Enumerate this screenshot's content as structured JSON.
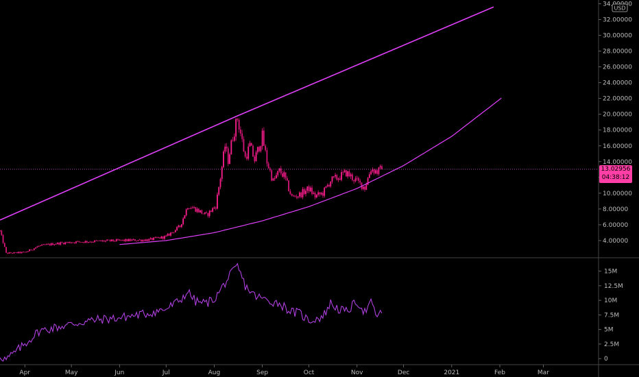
{
  "chart_data": [
    {
      "type": "candlestick",
      "currency": "USD",
      "x_ticks": [
        "Apr",
        "May",
        "Jun",
        "Jul",
        "Aug",
        "Sep",
        "Oct",
        "Nov",
        "Dec",
        "2021",
        "Feb",
        "Mar"
      ],
      "y_ticks": [
        "4.00000",
        "6.00000",
        "8.00000",
        "10.00000",
        "12.00000",
        "14.00000",
        "16.00000",
        "18.00000",
        "20.00000",
        "22.00000",
        "24.00000",
        "26.00000",
        "28.00000",
        "30.00000",
        "32.00000",
        "34.00000"
      ],
      "ylim": [
        2.0,
        34.3
      ],
      "last_price": {
        "value": 13.02956,
        "label": "13.02956",
        "countdown": "04:38:12"
      },
      "colors": {
        "up": "#ff1f8e",
        "down": "#ff1f8e",
        "trendline": "#e040fb",
        "price_line": "#c050c0",
        "tag_bg": "#ff3fa5"
      },
      "price_path": [
        [
          "2020-03-16",
          5.2
        ],
        [
          "2020-03-20",
          2.4
        ],
        [
          "2020-04-01",
          2.5
        ],
        [
          "2020-04-10",
          3.3
        ],
        [
          "2020-04-20",
          3.6
        ],
        [
          "2020-05-01",
          3.8
        ],
        [
          "2020-05-15",
          3.9
        ],
        [
          "2020-06-01",
          4.0
        ],
        [
          "2020-06-20",
          4.1
        ],
        [
          "2020-07-01",
          4.5
        ],
        [
          "2020-07-10",
          5.8
        ],
        [
          "2020-07-15",
          8.4
        ],
        [
          "2020-07-20",
          8.0
        ],
        [
          "2020-07-27",
          7.2
        ],
        [
          "2020-08-02",
          8.4
        ],
        [
          "2020-08-05",
          12.0
        ],
        [
          "2020-08-08",
          16.0
        ],
        [
          "2020-08-10",
          14.2
        ],
        [
          "2020-08-13",
          17.2
        ],
        [
          "2020-08-16",
          19.5
        ],
        [
          "2020-08-18",
          17.6
        ],
        [
          "2020-08-21",
          14.5
        ],
        [
          "2020-08-24",
          16.0
        ],
        [
          "2020-08-27",
          14.2
        ],
        [
          "2020-09-01",
          17.2
        ],
        [
          "2020-09-04",
          14.0
        ],
        [
          "2020-09-08",
          11.5
        ],
        [
          "2020-09-12",
          12.8
        ],
        [
          "2020-09-15",
          12.2
        ],
        [
          "2020-09-20",
          9.5
        ],
        [
          "2020-09-25",
          9.8
        ],
        [
          "2020-10-01",
          10.6
        ],
        [
          "2020-10-05",
          9.6
        ],
        [
          "2020-10-10",
          10.0
        ],
        [
          "2020-10-15",
          11.6
        ],
        [
          "2020-10-20",
          12.0
        ],
        [
          "2020-10-25",
          12.6
        ],
        [
          "2020-11-01",
          11.5
        ],
        [
          "2020-11-06",
          10.7
        ],
        [
          "2020-11-10",
          13.1
        ],
        [
          "2020-11-14",
          12.7
        ],
        [
          "2020-11-17",
          13.03
        ]
      ],
      "trendlines": [
        {
          "name": "upper-trendline",
          "points": [
            [
              "2020-03-16",
              6.6
            ],
            [
              "2020-08-16",
              19.8
            ],
            [
              "2021-01-28",
              33.6
            ]
          ]
        },
        {
          "name": "lower-curve",
          "points": [
            [
              "2020-06-01",
              3.5
            ],
            [
              "2020-07-01",
              4.0
            ],
            [
              "2020-08-01",
              5.0
            ],
            [
              "2020-09-01",
              6.5
            ],
            [
              "2020-10-01",
              8.3
            ],
            [
              "2020-11-01",
              10.6
            ],
            [
              "2020-12-01",
              13.5
            ],
            [
              "2021-01-01",
              17.2
            ],
            [
              "2021-02-03",
              22.2
            ]
          ]
        }
      ]
    },
    {
      "type": "line",
      "name": "volume-indicator",
      "y_ticks": [
        "0",
        "2.5M",
        "5M",
        "7.5M",
        "10M",
        "12.5M",
        "15M"
      ],
      "ylim": [
        -0.8,
        16.6
      ],
      "series": [
        {
          "color": "#b040e0",
          "points": [
            [
              "2020-03-16",
              0.5
            ],
            [
              "2020-03-20",
              -0.2
            ],
            [
              "2020-04-01",
              2.5
            ],
            [
              "2020-04-10",
              4.7
            ],
            [
              "2020-04-20",
              5.3
            ],
            [
              "2020-05-01",
              5.9
            ],
            [
              "2020-05-15",
              6.6
            ],
            [
              "2020-06-01",
              7.0
            ],
            [
              "2020-06-20",
              7.8
            ],
            [
              "2020-07-01",
              8.5
            ],
            [
              "2020-07-10",
              10.0
            ],
            [
              "2020-07-15",
              11.5
            ],
            [
              "2020-07-20",
              9.8
            ],
            [
              "2020-07-27",
              9.5
            ],
            [
              "2020-08-02",
              10.5
            ],
            [
              "2020-08-08",
              13.0
            ],
            [
              "2020-08-12",
              14.5
            ],
            [
              "2020-08-16",
              15.8
            ],
            [
              "2020-08-21",
              12.5
            ],
            [
              "2020-08-27",
              10.8
            ],
            [
              "2020-09-04",
              10.0
            ],
            [
              "2020-09-12",
              9.5
            ],
            [
              "2020-09-20",
              8.0
            ],
            [
              "2020-09-25",
              7.8
            ],
            [
              "2020-10-01",
              6.5
            ],
            [
              "2020-10-10",
              7.2
            ],
            [
              "2020-10-15",
              9.5
            ],
            [
              "2020-10-20",
              8.5
            ],
            [
              "2020-10-25",
              8.0
            ],
            [
              "2020-11-01",
              9.8
            ],
            [
              "2020-11-06",
              8.0
            ],
            [
              "2020-11-10",
              9.5
            ],
            [
              "2020-11-14",
              7.3
            ],
            [
              "2020-11-17",
              7.8
            ]
          ]
        }
      ]
    }
  ]
}
